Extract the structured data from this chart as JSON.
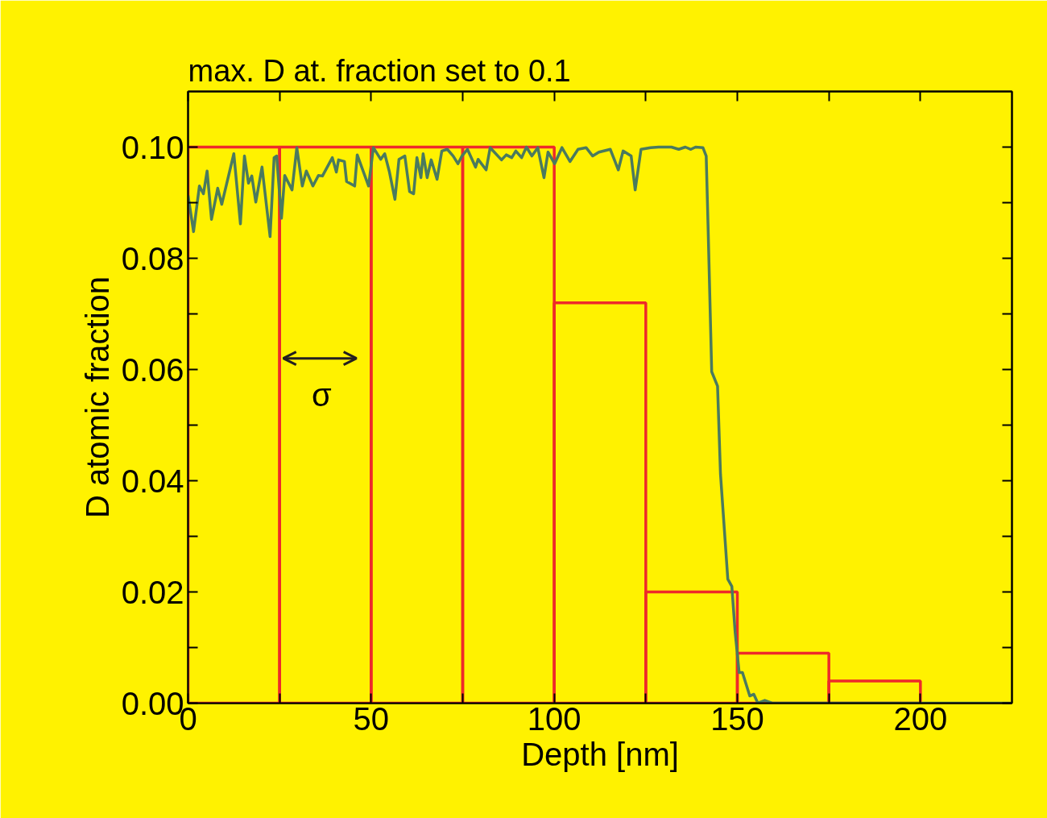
{
  "chart_data": {
    "type": "line",
    "title": "max. D at. fraction set to 0.1",
    "xlabel": "Depth [nm]",
    "ylabel": "D atomic fraction",
    "xlim": [
      0,
      225
    ],
    "ylim": [
      0,
      0.11
    ],
    "xticks": [
      0,
      {
        "value": 25,
        "label": null
      },
      50,
      {
        "value": 75,
        "label": null
      },
      100,
      {
        "value": 125,
        "label": null
      },
      150,
      {
        "value": 175,
        "label": null
      },
      200
    ],
    "yticks": [
      {
        "value": 0,
        "label": "0.00"
      },
      {
        "value": 0.01,
        "label": null
      },
      {
        "value": 0.02,
        "label": "0.02"
      },
      {
        "value": 0.03,
        "label": null
      },
      {
        "value": 0.04,
        "label": "0.04"
      },
      {
        "value": 0.05,
        "label": null
      },
      {
        "value": 0.06,
        "label": "0.06"
      },
      {
        "value": 0.07,
        "label": null
      },
      {
        "value": 0.08,
        "label": "0.08"
      },
      {
        "value": 0.09,
        "label": null
      },
      {
        "value": 0.1,
        "label": "0.10"
      }
    ],
    "grid": false,
    "annotations": [
      "σ"
    ],
    "series": [
      {
        "type": "bar",
        "color": "#ee2a2a",
        "x": [
          12.5,
          37.5,
          62.5,
          87.5,
          112.5,
          137.5,
          162.5,
          187.5
        ],
        "values": [
          0.1,
          0.1,
          0.1,
          0.1,
          0.072,
          0.02,
          0.009,
          0.004
        ]
      },
      {
        "color": "#4a7a5e",
        "x": [
          0,
          1.5,
          3.1,
          4.2,
          5.2,
          6.4,
          8.1,
          9.2,
          12.5,
          14.3,
          15.4,
          16.5,
          17.4,
          18.5,
          20.2,
          22.4,
          23.5,
          24.2,
          25.5,
          26.4,
          28.4,
          29.7,
          31.2,
          32.3,
          34.1,
          35.6,
          36.7,
          39.4,
          40.5,
          41.1,
          42.7,
          43.3,
          45.5,
          46.2,
          49.3,
          50.6,
          52.6,
          53.7,
          55.0,
          56.5,
          57.6,
          59.2,
          60.5,
          61.6,
          62.5,
          63.6,
          64.2,
          65.3,
          66.4,
          68.0,
          69.3,
          70.8,
          72.4,
          73.7,
          74.8,
          76.3,
          78.5,
          79.2,
          81.4,
          82.5,
          85.6,
          86.9,
          88.4,
          89.5,
          91.1,
          92.4,
          93.9,
          95.5,
          97.2,
          98.3,
          100.1,
          102.1,
          104.3,
          106.5,
          108.7,
          110.5,
          112.2,
          115.3,
          117.5,
          118.8,
          121.0,
          122.1,
          123.7,
          126.3,
          128.5,
          132.0,
          134.0,
          135.8,
          137.3,
          138.6,
          140.6,
          141.5,
          142.0,
          143.0,
          144.6,
          145.4,
          147.4,
          148.5,
          149.4,
          150.5,
          151.4,
          153.4,
          154.5,
          155.6,
          157.5,
          159.5,
          225
        ],
        "values": [
          0.0913,
          0.0848,
          0.093,
          0.0916,
          0.0957,
          0.087,
          0.0926,
          0.0897,
          0.0988,
          0.0862,
          0.0984,
          0.0935,
          0.0948,
          0.0901,
          0.0964,
          0.0839,
          0.0981,
          0.0984,
          0.0872,
          0.0949,
          0.0923,
          0.0999,
          0.093,
          0.0957,
          0.093,
          0.0949,
          0.0948,
          0.0981,
          0.0955,
          0.0977,
          0.0974,
          0.0938,
          0.093,
          0.0986,
          0.093,
          0.0999,
          0.0978,
          0.0988,
          0.0955,
          0.0906,
          0.0978,
          0.0984,
          0.092,
          0.0916,
          0.0981,
          0.0945,
          0.0988,
          0.0945,
          0.0977,
          0.0942,
          0.0993,
          0.0996,
          0.0984,
          0.097,
          0.0984,
          0.0996,
          0.0964,
          0.0978,
          0.0959,
          0.0999,
          0.0977,
          0.0986,
          0.0981,
          0.0993,
          0.0981,
          0.1,
          0.0984,
          0.0999,
          0.0945,
          0.0991,
          0.097,
          0.0999,
          0.0974,
          0.0996,
          0.0999,
          0.0984,
          0.0991,
          0.0996,
          0.0959,
          0.0993,
          0.0984,
          0.0923,
          0.0996,
          0.0999,
          0.1,
          0.1,
          0.0996,
          0.1,
          0.0996,
          0.1,
          0.0999,
          0.0984,
          0.086,
          0.0596,
          0.057,
          0.0412,
          0.0223,
          0.021,
          0.0128,
          0.0055,
          0.0055,
          0.0013,
          0.0016,
          0,
          0.0005,
          0,
          0
        ]
      }
    ]
  }
}
